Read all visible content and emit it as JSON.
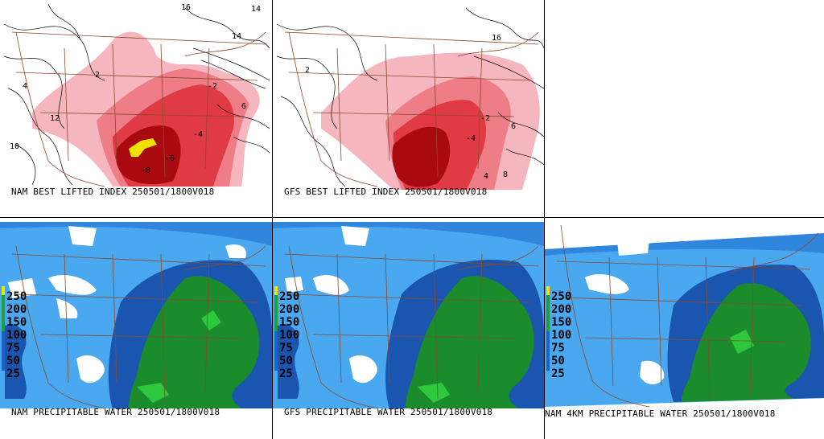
{
  "panels": {
    "nam_li": {
      "caption": "NAM BEST LIFTED INDEX 250501/1800V018"
    },
    "gfs_li": {
      "caption": "GFS BEST LIFTED INDEX 250501/1800V018"
    },
    "nam_pw": {
      "caption": "NAM PRECIPITABLE WATER 250501/1800V018"
    },
    "gfs_pw": {
      "caption": "GFS PRECIPITABLE WATER 250501/1800V018"
    },
    "nam4_pw": {
      "caption": "NAM 4KM PRECIPITABLE WATER 250501/1800V018"
    }
  },
  "pw_legend": {
    "labels": [
      "250",
      "200",
      "150",
      "100",
      "75",
      "50",
      "25"
    ],
    "colors": {
      "yellow": "#f2e600",
      "green": "#1fa030",
      "blue": "#1a64c8",
      "light_blue": "#4aa8f0"
    }
  },
  "contour_labels": [
    "2",
    "4",
    "6",
    "8",
    "10",
    "12",
    "14",
    "16",
    "-2",
    "-4",
    "-6",
    "-8"
  ],
  "colors": {
    "li_light": "#f6b6bf",
    "li_mid": "#ee7d88",
    "li_strong": "#e03a44",
    "li_dark": "#a80a10",
    "li_extreme": "#f2e000",
    "pw_white": "#ffffff",
    "pw_pale": "#4aa8f0",
    "pw_blue": "#2f86dc",
    "pw_darkblue": "#1a56b0",
    "pw_green": "#1b8c2c",
    "pw_lightgreen": "#2ec83c",
    "borders": "#8b4a2b"
  }
}
